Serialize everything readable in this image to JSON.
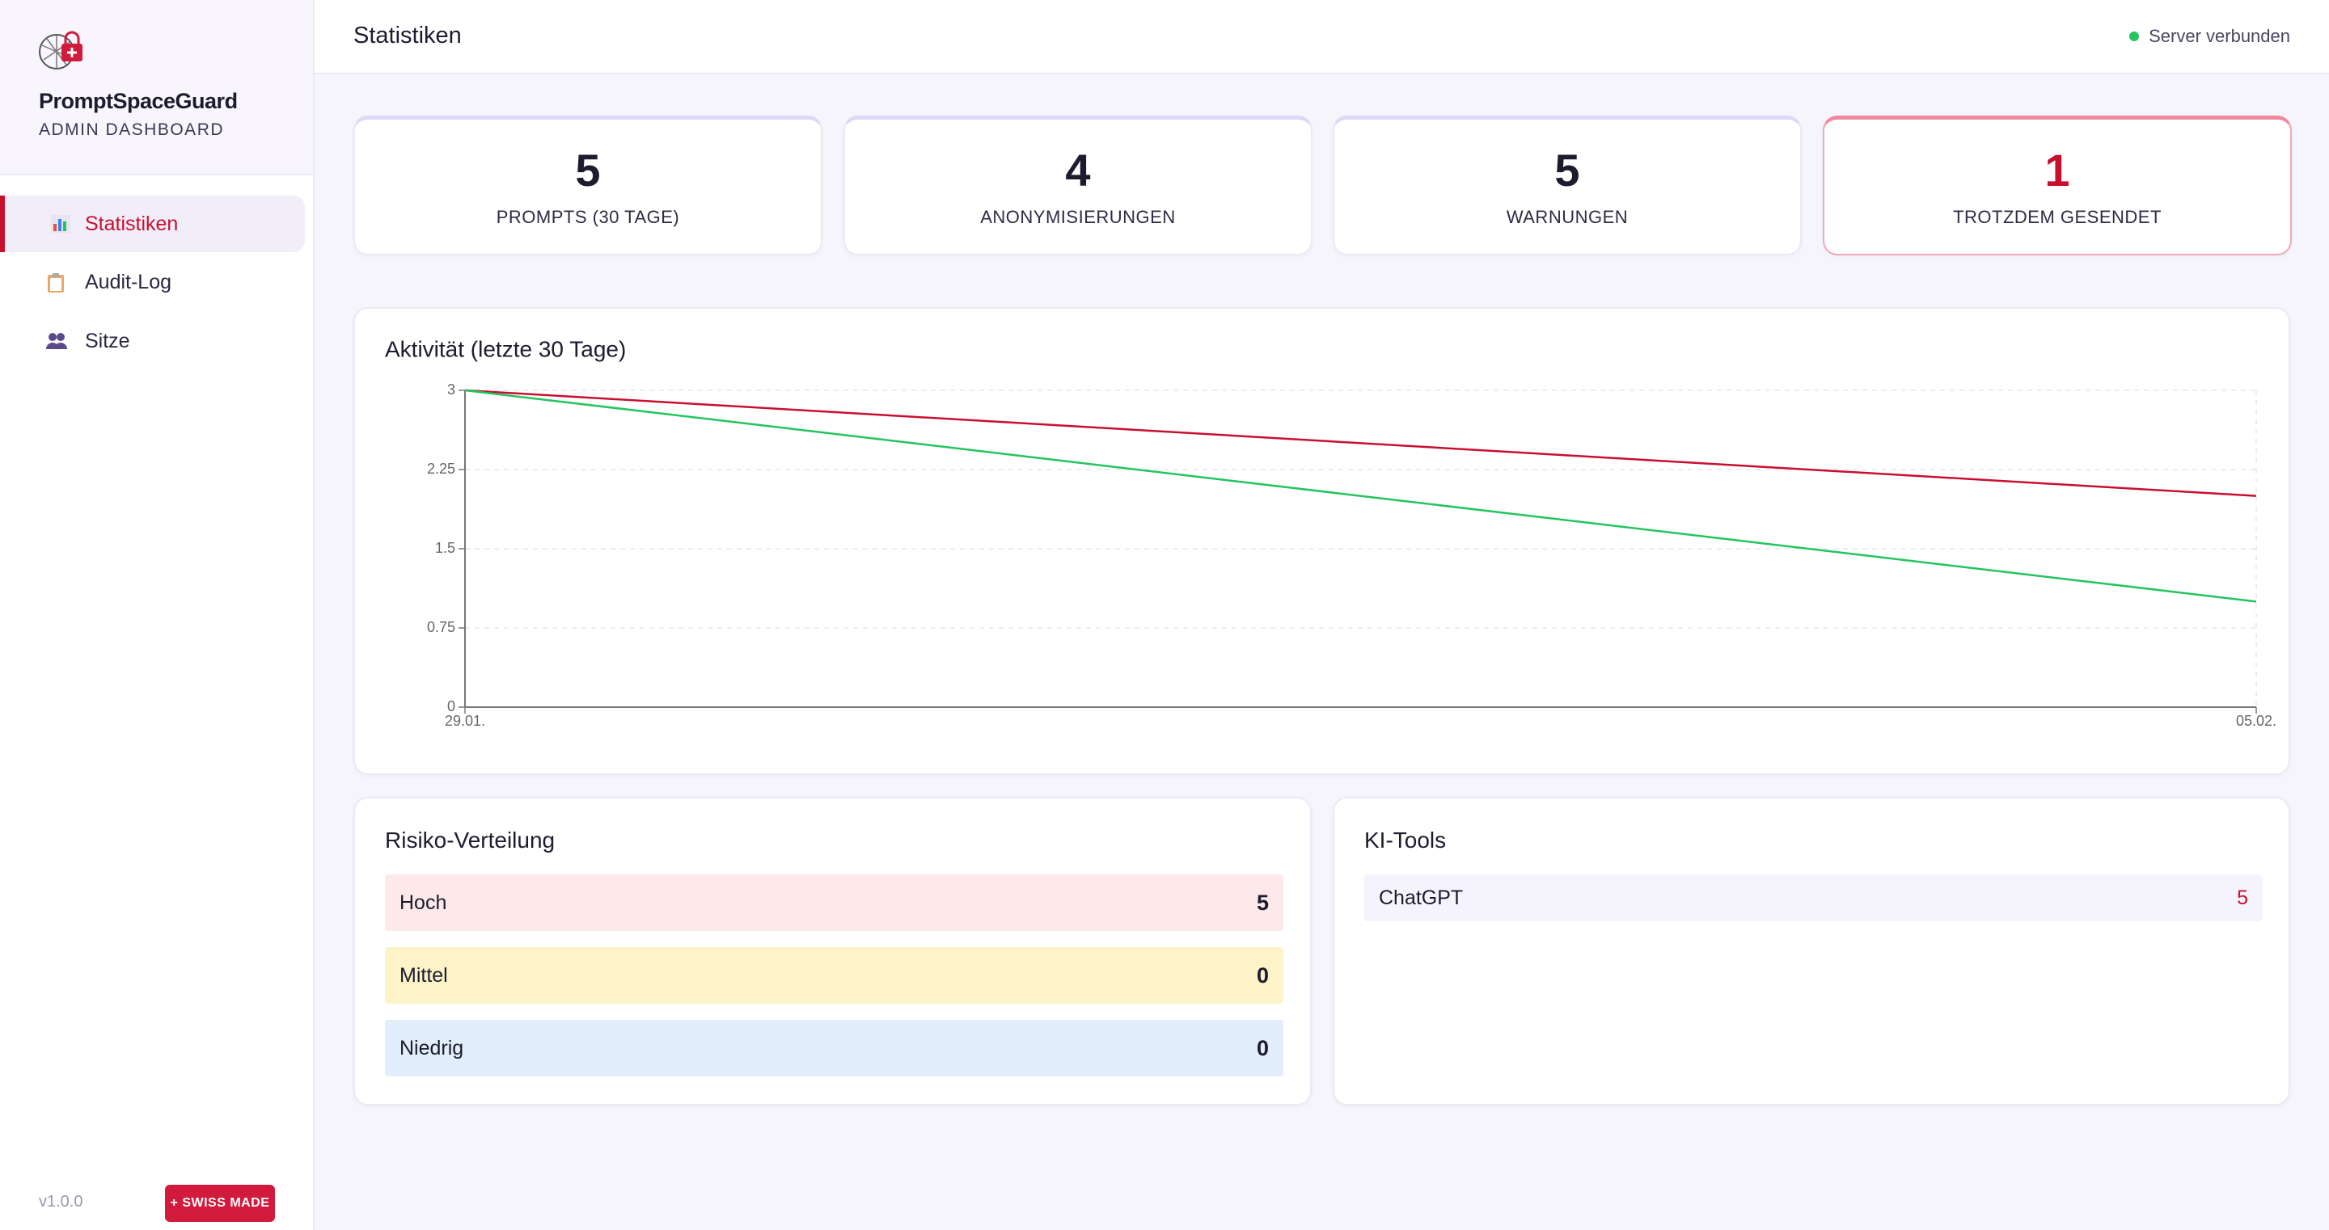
{
  "sidebar": {
    "brand": "PromptSpaceGuard",
    "subtitle": "ADMIN DASHBOARD",
    "nav": [
      "Statistiken",
      "Audit-Log",
      "Sitze"
    ],
    "version": "v1.0.0",
    "badge": "+ SWISS MADE"
  },
  "header": {
    "title": "Statistiken",
    "status": "Server verbunden"
  },
  "stats": [
    {
      "value": 5,
      "label": "PROMPTS (30 TAGE)"
    },
    {
      "value": 4,
      "label": "ANONYMISIERUNGEN"
    },
    {
      "value": 5,
      "label": "WARNUNGEN"
    },
    {
      "value": 1,
      "label": "TROTZDEM GESENDET"
    }
  ],
  "chart_data": {
    "type": "line",
    "title": "Aktivität (letzte 30 Tage)",
    "categories": [
      "29.01.",
      "05.02."
    ],
    "series": [
      {
        "color": "#c8102e",
        "values": [
          3,
          2
        ]
      },
      {
        "color": "#22c55e",
        "values": [
          3,
          1
        ]
      }
    ],
    "ylim": [
      0,
      3
    ],
    "yticks": [
      0,
      0.75,
      1.5,
      2.25,
      3
    ],
    "grid": true
  },
  "risk": {
    "title": "Risiko-Verteilung",
    "rows": [
      {
        "label": "Hoch",
        "value": 5
      },
      {
        "label": "Mittel",
        "value": 0
      },
      {
        "label": "Niedrig",
        "value": 0
      }
    ]
  },
  "tools": {
    "title": "KI-Tools",
    "rows": [
      {
        "label": "ChatGPT",
        "value": 5
      }
    ]
  }
}
